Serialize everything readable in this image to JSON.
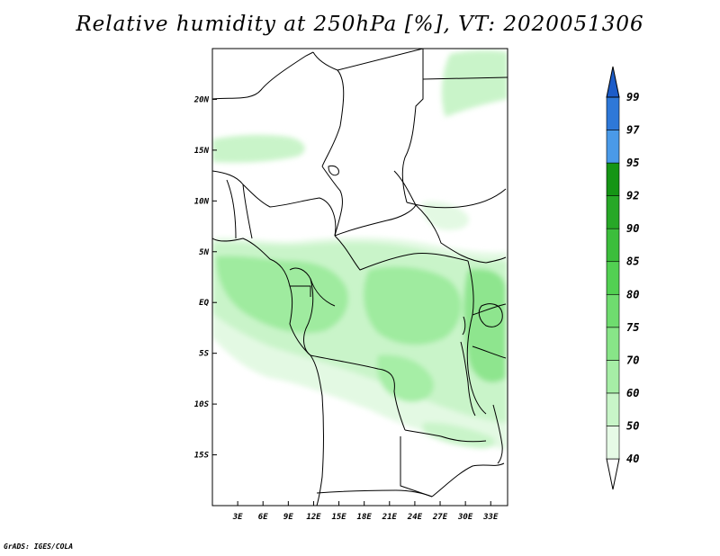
{
  "title": "Relative humidity at 250hPa [%], VT: 2020051306",
  "credit": "GrADS: IGES/COLA",
  "map": {
    "variable": "Relative humidity",
    "level": "250hPa",
    "units": "%",
    "valid_time": "2020051306",
    "lon_range": [
      0,
      35
    ],
    "lat_range": [
      -20,
      25
    ],
    "lon_ticks": [
      {
        "value": 3,
        "label": "3E"
      },
      {
        "value": 6,
        "label": "6E"
      },
      {
        "value": 9,
        "label": "9E"
      },
      {
        "value": 12,
        "label": "12E"
      },
      {
        "value": 15,
        "label": "15E"
      },
      {
        "value": 18,
        "label": "18E"
      },
      {
        "value": 21,
        "label": "21E"
      },
      {
        "value": 24,
        "label": "24E"
      },
      {
        "value": 27,
        "label": "27E"
      },
      {
        "value": 30,
        "label": "30E"
      },
      {
        "value": 33,
        "label": "33E"
      }
    ],
    "lat_ticks": [
      {
        "value": 20,
        "label": "20N"
      },
      {
        "value": 15,
        "label": "15N"
      },
      {
        "value": 10,
        "label": "10N"
      },
      {
        "value": 5,
        "label": "5N"
      },
      {
        "value": 0,
        "label": "EQ"
      },
      {
        "value": -5,
        "label": "5S"
      },
      {
        "value": -10,
        "label": "10S"
      },
      {
        "value": -15,
        "label": "15S"
      }
    ]
  },
  "colorbar": {
    "levels": [
      {
        "label": "40",
        "color": "#e6fae6"
      },
      {
        "label": "50",
        "color": "#c8f5c8"
      },
      {
        "label": "60",
        "color": "#a6eea6"
      },
      {
        "label": "70",
        "color": "#88e588"
      },
      {
        "label": "75",
        "color": "#6fdc6f"
      },
      {
        "label": "80",
        "color": "#52d052"
      },
      {
        "label": "85",
        "color": "#3cbe3c"
      },
      {
        "label": "90",
        "color": "#27a827"
      },
      {
        "label": "92",
        "color": "#159515"
      },
      {
        "label": "95",
        "color": "#4a9ae8"
      },
      {
        "label": "97",
        "color": "#2e78d8"
      },
      {
        "label": "99",
        "color": "#1c5cc8"
      }
    ],
    "bottom_color": "#ffffff"
  }
}
